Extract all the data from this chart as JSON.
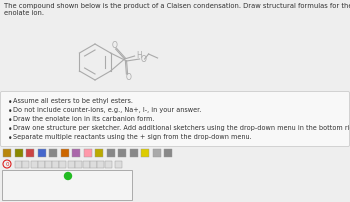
{
  "title_line1": "The compound shown below is the product of a Claisen condensation. Draw structural formulas for the reactants: ester and",
  "title_line2": "enolate ion.",
  "bullet_points": [
    "Assume all esters to be ethyl esters.",
    "Do not include counter-ions, e.g., Na+, I-, in your answer.",
    "Draw the enolate ion in its carbanion form.",
    "Draw one structure per sketcher. Add additional sketchers using the drop-down menu in the bottom right corner.",
    "Separate multiple reactants using the + sign from the drop-down menu."
  ],
  "bg_color": "#eeeeee",
  "box_bg": "#f8f8f8",
  "box_border": "#cccccc",
  "sketcher_bg": "#f4f4f4",
  "sketcher_border": "#aaaaaa",
  "structure_color": "#aaaaaa",
  "dot_color": "#22bb22",
  "text_color": "#333333"
}
